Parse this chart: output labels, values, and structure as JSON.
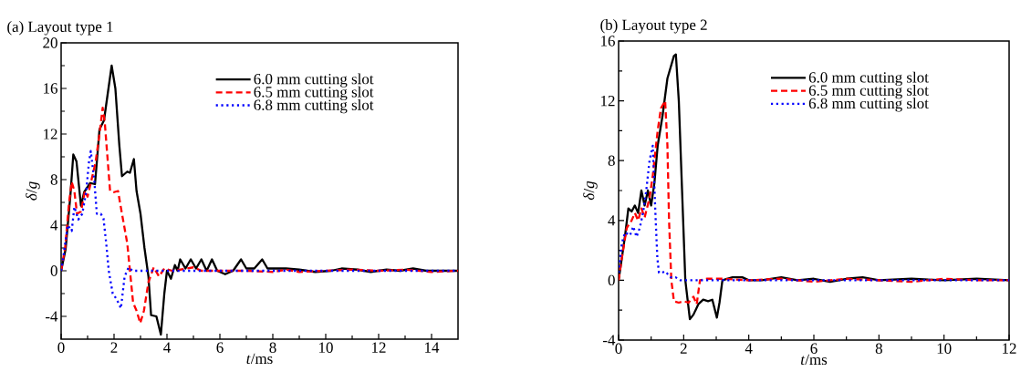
{
  "chart_data": [
    {
      "type": "line",
      "title": "(a) Layout type 1",
      "xlabel": "*t*/ms",
      "ylabel": "*δ*/*g*",
      "xlim": [
        0,
        15
      ],
      "ylim": [
        -6,
        20
      ],
      "xticks": [
        0,
        2,
        4,
        6,
        8,
        10,
        12,
        14
      ],
      "yticks": [
        -4,
        0,
        4,
        8,
        12,
        16,
        20
      ],
      "legend": "top right",
      "series": [
        {
          "name": "6.0 mm cutting slot",
          "color": "#000000",
          "line_style": "solid",
          "x": [
            0,
            0.17,
            0.35,
            0.46,
            0.58,
            0.75,
            0.87,
            1.1,
            1.28,
            1.45,
            1.62,
            1.91,
            2.05,
            2.2,
            2.3,
            2.5,
            2.6,
            2.75,
            2.85,
            3.0,
            3.15,
            3.3,
            3.4,
            3.6,
            3.77,
            3.9,
            4.0,
            4.15,
            4.3,
            4.4,
            4.5,
            4.7,
            4.9,
            5.1,
            5.3,
            5.5,
            5.7,
            5.9,
            6.2,
            6.5,
            6.8,
            7.0,
            7.3,
            7.6,
            7.8,
            8.5,
            9,
            9.6,
            10.2,
            10.6,
            11.2,
            11.7,
            12.3,
            12.8,
            13.3,
            13.8,
            15
          ],
          "values": [
            0,
            1.9,
            6.6,
            10.2,
            9.6,
            5.7,
            6.9,
            7.7,
            7.6,
            12.4,
            13.2,
            18.0,
            16,
            11,
            8.3,
            8.7,
            8.6,
            9.8,
            7,
            5,
            2,
            -0.5,
            -3.9,
            -4,
            -5.6,
            -2,
            0,
            -0.7,
            0.5,
            0,
            1,
            0.2,
            1,
            0.2,
            1,
            0,
            1,
            0,
            -0.3,
            0,
            1,
            0.2,
            0.2,
            1,
            0.2,
            0.2,
            0.1,
            -0.1,
            0,
            0.2,
            0.1,
            -0.1,
            0.1,
            0,
            0.2,
            0,
            0
          ]
        },
        {
          "name": "6.5 mm cutting slot",
          "color": "#ff0000",
          "line_style": "dashed",
          "x": [
            0,
            0.15,
            0.3,
            0.4,
            0.5,
            0.6,
            0.75,
            0.9,
            1.0,
            1.15,
            1.3,
            1.45,
            1.57,
            1.65,
            1.75,
            1.85,
            2.0,
            2.15,
            2.3,
            2.5,
            2.72,
            2.85,
            2.99,
            3.13,
            3.3,
            3.5,
            3.7,
            3.9,
            4.2,
            4.5,
            5,
            5.3,
            6,
            7,
            8,
            8.5,
            9,
            10,
            11,
            12,
            13,
            14,
            15
          ],
          "values": [
            0,
            2,
            6,
            7.8,
            7,
            5,
            5.2,
            7,
            6.5,
            8,
            9.5,
            12,
            14.3,
            13,
            10,
            7,
            6.9,
            7,
            5,
            2.4,
            -2.8,
            -3.5,
            -4.6,
            -3.5,
            -1,
            0.3,
            -0.5,
            0.2,
            0,
            0.1,
            0.3,
            0,
            0,
            0,
            -0.1,
            0.1,
            -0.1,
            0,
            0.1,
            0,
            0.1,
            -0.1,
            0
          ]
        },
        {
          "name": "6.8 mm cutting slot",
          "color": "#0000ff",
          "line_style": "dotted",
          "x": [
            0,
            0.1,
            0.25,
            0.4,
            0.5,
            0.65,
            0.8,
            0.95,
            1.05,
            1.12,
            1.25,
            1.35,
            1.5,
            1.6,
            1.7,
            1.8,
            1.95,
            2.1,
            2.26,
            2.4,
            2.55,
            2.7,
            3,
            4,
            6,
            8,
            10,
            12,
            15
          ],
          "values": [
            0,
            1.5,
            4,
            3.5,
            5.6,
            4.5,
            5,
            7,
            9.5,
            10.5,
            8,
            5,
            5,
            4.6,
            2.5,
            0,
            -2,
            -2.5,
            -3.3,
            -0.5,
            0.3,
            0,
            0,
            0,
            0,
            0,
            0,
            0,
            0
          ]
        }
      ]
    },
    {
      "type": "line",
      "title": "(b) Layout type 2",
      "xlabel": "*t*/ms",
      "ylabel": "*δ*/*g*",
      "xlim": [
        0,
        12
      ],
      "ylim": [
        -4,
        16
      ],
      "xticks": [
        0,
        2,
        4,
        6,
        8,
        10,
        12
      ],
      "yticks": [
        -4,
        0,
        4,
        8,
        12,
        16
      ],
      "legend": "top right",
      "series": [
        {
          "name": "6.0 mm cutting slot",
          "color": "#000000",
          "line_style": "solid",
          "x": [
            0,
            0.1,
            0.2,
            0.3,
            0.4,
            0.5,
            0.6,
            0.7,
            0.8,
            0.9,
            1.0,
            1.1,
            1.2,
            1.35,
            1.5,
            1.7,
            1.76,
            1.85,
            1.95,
            2.05,
            2.19,
            2.3,
            2.45,
            2.6,
            2.75,
            2.88,
            3.02,
            3.1,
            3.19,
            3.5,
            3.8,
            4.0,
            4.4,
            5,
            5.5,
            6,
            6.5,
            7,
            7.5,
            8,
            9,
            10,
            11,
            12
          ],
          "values": [
            0,
            1.5,
            3,
            4.8,
            4.6,
            5,
            4.5,
            6,
            5,
            6,
            5,
            6.5,
            9,
            11,
            13.5,
            15,
            15.1,
            12,
            6,
            0,
            -2.6,
            -2.3,
            -1.6,
            -1.3,
            -1.4,
            -1.3,
            -2.5,
            -1.5,
            0,
            0.2,
            0.2,
            0,
            0,
            0.2,
            0,
            0.1,
            -0.1,
            0.1,
            0.2,
            0,
            0.1,
            0,
            0.1,
            0
          ]
        },
        {
          "name": "6.5 mm cutting slot",
          "color": "#ff0000",
          "line_style": "dashed",
          "x": [
            0,
            0.1,
            0.25,
            0.4,
            0.5,
            0.6,
            0.7,
            0.8,
            0.95,
            1.05,
            1.2,
            1.3,
            1.43,
            1.5,
            1.55,
            1.62,
            1.7,
            1.85,
            2.0,
            2.15,
            2.3,
            2.4,
            2.5,
            2.7,
            3.2,
            4,
            5,
            6,
            7,
            8,
            9,
            10,
            11,
            12
          ],
          "values": [
            0,
            1.5,
            3.5,
            4,
            4.5,
            4,
            4.8,
            4.2,
            5.5,
            7,
            10,
            11.5,
            12,
            9,
            4,
            0,
            -1.4,
            -1.5,
            -1.4,
            -1.5,
            -1.1,
            -1.6,
            0,
            0.1,
            0.1,
            0,
            0.1,
            -0.1,
            0.1,
            0,
            -0.1,
            0.1,
            0,
            0
          ]
        },
        {
          "name": "6.8 mm cutting slot",
          "color": "#0000ff",
          "line_style": "dotted",
          "x": [
            0,
            0.1,
            0.2,
            0.35,
            0.45,
            0.55,
            0.65,
            0.75,
            0.85,
            0.95,
            1.05,
            1.14,
            1.19,
            1.24,
            1.33,
            1.43,
            1.6,
            1.75,
            1.9,
            2.2,
            3,
            4,
            6,
            8,
            10,
            12
          ],
          "values": [
            0.5,
            2.5,
            3.2,
            3,
            3.6,
            2.9,
            3.5,
            4.5,
            6,
            8,
            9,
            4,
            1.5,
            0.5,
            0.5,
            0.6,
            0.2,
            0.2,
            0,
            0,
            0,
            0,
            0,
            0,
            0,
            0
          ]
        }
      ]
    }
  ]
}
